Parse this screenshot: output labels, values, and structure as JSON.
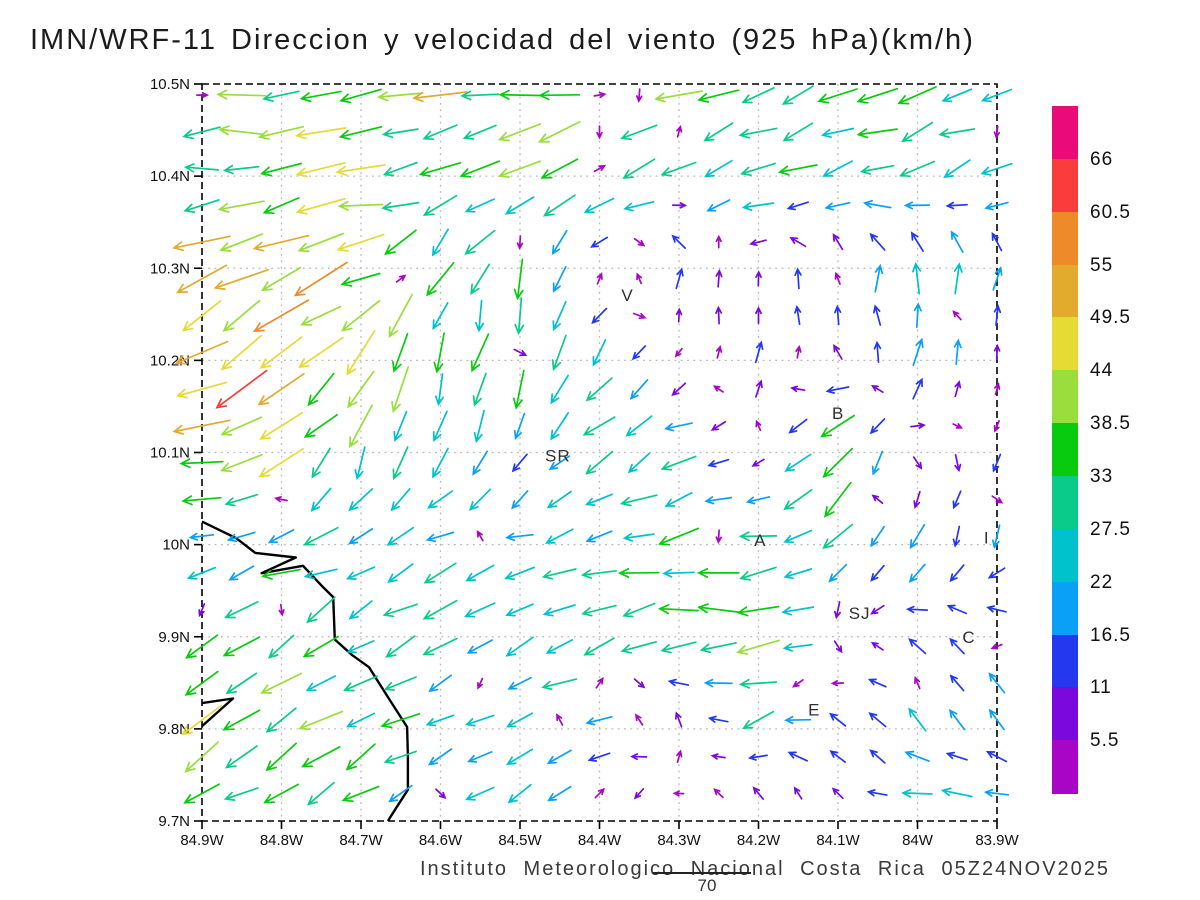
{
  "chart_data": {
    "type": "quiver",
    "title": "IMN/WRF-11 Direccion y velocidad del viento (925 hPa)(km/h)",
    "footer": "Instituto Meteorologico Nacional Costa Rica 05Z24NOV2025",
    "reference": "70",
    "pressure_level": "925 hPa",
    "units": "km/h",
    "x_axis": {
      "labels": [
        "84.9W",
        "84.8W",
        "84.7W",
        "84.6W",
        "84.5W",
        "84.4W",
        "84.3W",
        "84.2W",
        "84.1W",
        "84W",
        "83.9W"
      ],
      "lon_min": -84.9,
      "lon_max": -83.9
    },
    "y_axis": {
      "labels": [
        "10.5N",
        "10.4N",
        "10.3N",
        "10.2N",
        "10.1N",
        "10N",
        "9.9N",
        "9.8N",
        "9.7N"
      ],
      "lat_min": 9.7,
      "lat_max": 10.5
    },
    "grid": "dotted-gray",
    "frame": "dashed-black",
    "colorbar": {
      "labels_top_to_bottom": [
        "66",
        "60.5",
        "55",
        "49.5",
        "44",
        "38.5",
        "33",
        "27.5",
        "22",
        "16.5",
        "11",
        "5.5"
      ],
      "colors_top_to_bottom": [
        "#ea0a78",
        "#f93c3c",
        "#ef8a2a",
        "#e2ab2e",
        "#e6da34",
        "#9add3c",
        "#08cb10",
        "#0bcb8a",
        "#00c2cc",
        "#0aa0f8",
        "#2438f0",
        "#7b08dc",
        "#a805c6"
      ],
      "levels_ascending": [
        5.5,
        11,
        16.5,
        22,
        27.5,
        33,
        38.5,
        44,
        49.5,
        55,
        60.5,
        66
      ]
    },
    "stations": [
      {
        "label": "V",
        "lon": -84.365,
        "lat": 10.271
      },
      {
        "label": "B",
        "lon": -84.1,
        "lat": 10.143
      },
      {
        "label": "SR",
        "lon": -84.461,
        "lat": 10.097
      },
      {
        "label": "A",
        "lon": -84.198,
        "lat": 10.005
      },
      {
        "label": "I",
        "lon": -83.909,
        "lat": 10.008
      },
      {
        "label": "SJ",
        "lon": -84.079,
        "lat": 9.926
      },
      {
        "label": "C",
        "lon": -83.936,
        "lat": 9.9
      },
      {
        "label": "E",
        "lon": -84.13,
        "lat": 9.821
      }
    ],
    "coastlines": [
      [
        [
          -84.9,
          10.025
        ],
        [
          -84.857,
          10.007
        ],
        [
          -84.833,
          9.991
        ],
        [
          -84.782,
          9.986
        ],
        [
          -84.825,
          9.969
        ],
        [
          -84.773,
          9.977
        ],
        [
          -84.749,
          9.955
        ],
        [
          -84.735,
          9.943
        ],
        [
          -84.733,
          9.897
        ],
        [
          -84.711,
          9.88
        ],
        [
          -84.69,
          9.867
        ],
        [
          -84.665,
          9.833
        ],
        [
          -84.642,
          9.802
        ],
        [
          -84.641,
          9.77
        ],
        [
          -84.641,
          9.734
        ],
        [
          -84.664,
          9.703
        ],
        [
          -84.666,
          9.7
        ]
      ],
      [
        [
          -84.9,
          9.828
        ],
        [
          -84.861,
          9.833
        ],
        [
          -84.9,
          9.803
        ]
      ]
    ],
    "wind_grid": {
      "lons": [
        -84.9,
        -84.8,
        -84.7,
        -84.6,
        -84.5,
        -84.4,
        -84.3,
        -84.2,
        -84.1,
        -84.0,
        -83.9
      ],
      "lats": [
        10.5,
        10.4,
        10.3,
        10.2,
        10.1,
        10.0,
        9.9,
        9.8,
        9.7
      ],
      "u": [
        [
          -38,
          -40,
          -42,
          -40,
          -38,
          -36,
          -34,
          -33,
          -30,
          -28,
          -26
        ],
        [
          -30,
          -34,
          -36,
          -34,
          -30,
          -28,
          -30,
          -28,
          -26,
          -24,
          -22
        ],
        [
          -48,
          -45,
          -38,
          -14,
          -10,
          -4,
          2,
          0,
          3,
          -4,
          2
        ],
        [
          -50,
          -42,
          -30,
          -8,
          -8,
          -14,
          -2,
          4,
          -6,
          5,
          2
        ],
        [
          -44,
          -36,
          -12,
          -6,
          -5,
          -24,
          -24,
          -3,
          -30,
          6,
          -4
        ],
        [
          -16,
          -22,
          -25,
          -25,
          -18,
          -24,
          -30,
          -30,
          -20,
          -8,
          -6
        ],
        [
          -25,
          -30,
          -25,
          -25,
          -22,
          -24,
          -30,
          -45,
          5,
          -14,
          -12
        ],
        [
          -30,
          -32,
          -25,
          -22,
          -20,
          -20,
          2,
          -20,
          -12,
          -12,
          -10
        ],
        [
          -24,
          -25,
          -22,
          -20,
          -18,
          -5,
          -2,
          2,
          -1,
          -28,
          -24
        ]
      ],
      "v": [
        [
          -2,
          -2,
          -3,
          -3,
          -4,
          -5,
          -8,
          -10,
          -10,
          -8,
          -6
        ],
        [
          -4,
          -4,
          -5,
          -8,
          -10,
          -12,
          -12,
          -14,
          -12,
          -10,
          -8
        ],
        [
          -22,
          -25,
          -20,
          -26,
          -28,
          -6,
          16,
          5,
          20,
          24,
          16
        ],
        [
          -30,
          -28,
          -30,
          -30,
          -34,
          -20,
          -4,
          14,
          6,
          20,
          8
        ],
        [
          -10,
          -22,
          -30,
          -28,
          -14,
          -20,
          -10,
          -3,
          -30,
          -6,
          -8
        ],
        [
          -5,
          -8,
          -12,
          -8,
          -5,
          -8,
          -8,
          -5,
          -14,
          -18,
          -14
        ],
        [
          -14,
          -18,
          -15,
          -10,
          -12,
          -8,
          -2,
          -4,
          -8,
          10,
          12
        ],
        [
          -20,
          -20,
          -15,
          -12,
          -12,
          -8,
          10,
          -10,
          8,
          14,
          12
        ],
        [
          -14,
          -15,
          -12,
          -12,
          -10,
          -9,
          -4,
          14,
          4,
          -4,
          -4
        ]
      ]
    }
  }
}
